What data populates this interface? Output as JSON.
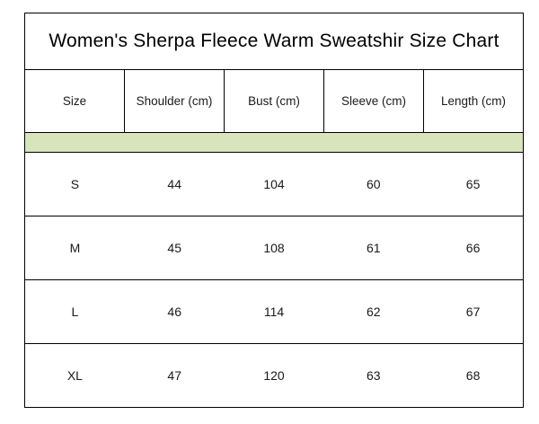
{
  "title": "Women's Sherpa Fleece Warm Sweatshir Size Chart",
  "colors": {
    "band": "#d8e4bc",
    "border": "#000000"
  },
  "headers": [
    "Size",
    "Shoulder (cm)",
    "Bust (cm)",
    "Sleeve (cm)",
    "Length (cm)"
  ],
  "rows": [
    [
      "S",
      "44",
      "104",
      "60",
      "65"
    ],
    [
      "M",
      "45",
      "108",
      "61",
      "66"
    ],
    [
      "L",
      "46",
      "114",
      "62",
      "67"
    ],
    [
      "XL",
      "47",
      "120",
      "63",
      "68"
    ]
  ]
}
